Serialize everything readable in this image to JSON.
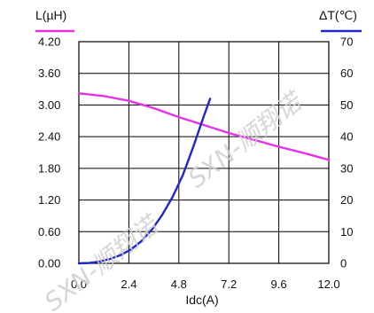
{
  "chart_data": {
    "type": "line",
    "xlabel": "Idc(A)",
    "ylabel_left": "L(µH)",
    "ylabel_right": "ΔT(℃)",
    "xlim": [
      0.0,
      12.0
    ],
    "x_ticks": [
      "0.0",
      "2.4",
      "4.8",
      "7.2",
      "9.6",
      "12.0"
    ],
    "ylim_left": [
      0.0,
      4.2
    ],
    "y_left_ticks": [
      "0.00",
      "0.60",
      "1.20",
      "1.80",
      "2.40",
      "3.00",
      "3.60",
      "4.20"
    ],
    "ylim_right": [
      0,
      70
    ],
    "y_right_ticks": [
      "0",
      "10",
      "20",
      "30",
      "40",
      "50",
      "60",
      "70"
    ],
    "grid": true,
    "colors": {
      "inductance": "#e632e6",
      "temperature": "#1e28c8"
    },
    "series": [
      {
        "axis": "left",
        "x": [
          0.0,
          1.2,
          2.4,
          3.6,
          4.8,
          6.0,
          7.2,
          8.4,
          9.6,
          10.8,
          12.0
        ],
        "values": [
          3.22,
          3.17,
          3.08,
          2.94,
          2.77,
          2.62,
          2.47,
          2.34,
          2.21,
          2.09,
          1.96
        ]
      },
      {
        "axis": "right",
        "x": [
          0.0,
          0.5,
          1.0,
          1.5,
          2.0,
          2.5,
          3.0,
          3.5,
          4.0,
          4.5,
          5.0,
          5.5,
          6.0,
          6.3
        ],
        "values": [
          0.0,
          0.1,
          0.6,
          1.4,
          2.6,
          4.4,
          7.0,
          10.6,
          15.3,
          21.0,
          28.0,
          37.0,
          46.5,
          52.0
        ]
      }
    ]
  },
  "watermark": "SXN-顺翔诺"
}
